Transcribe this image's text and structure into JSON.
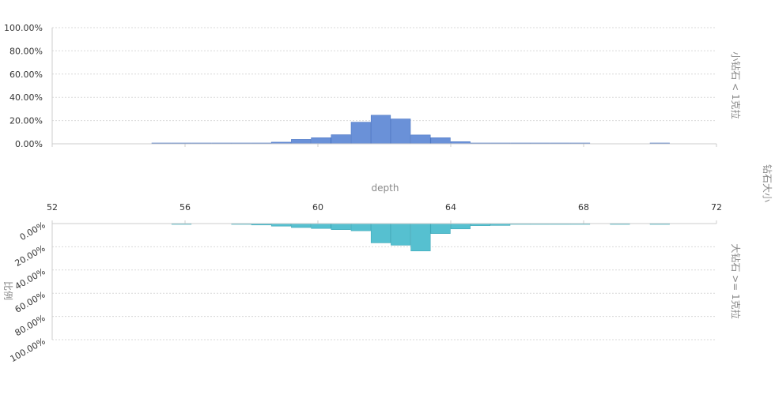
{
  "chart_data": {
    "type": "bar",
    "subtype": "mirrored-histogram",
    "x_axis": {
      "label": "depth",
      "range": [
        52,
        72
      ],
      "ticks": [
        52,
        56,
        60,
        64,
        68,
        72
      ],
      "tick_labels": [
        "52",
        "56",
        "60",
        "64",
        "68",
        "72"
      ],
      "bin_width": 0.6
    },
    "y_axis": {
      "label": "比例",
      "range": [
        0,
        100
      ],
      "unit": "%",
      "tick_labels": [
        "0.00%",
        "20.00%",
        "40.00%",
        "60.00%",
        "80.00%",
        "100.00%"
      ]
    },
    "facet_title": "钻石大小",
    "grid": true,
    "series": [
      {
        "name": "小钻石 < 1克拉",
        "facet": "top",
        "color": "#6a91d8",
        "x": [
          54.4,
          55.0,
          55.6,
          56.2,
          56.8,
          57.4,
          58.0,
          58.6,
          59.2,
          59.8,
          60.4,
          61.0,
          61.6,
          62.2,
          62.8,
          63.4,
          64.0,
          64.6,
          65.2,
          65.8,
          66.4,
          67.0,
          67.6,
          68.2,
          68.8,
          69.4,
          70.0,
          70.6
        ],
        "values": [
          0,
          0.2,
          0.2,
          0.2,
          0.4,
          0.4,
          0.6,
          1.4,
          3.8,
          5.2,
          7.8,
          18.6,
          24.6,
          21.4,
          7.6,
          5.2,
          1.8,
          0.4,
          0.6,
          0.4,
          0.2,
          0.2,
          0.2,
          0,
          0,
          0,
          0.4,
          0
        ]
      },
      {
        "name": "大钻石 >= 1克拉",
        "facet": "bottom",
        "color": "#56c0d0",
        "x": [
          54.4,
          55.0,
          55.6,
          56.2,
          56.8,
          57.4,
          58.0,
          58.6,
          59.2,
          59.8,
          60.4,
          61.0,
          61.6,
          62.2,
          62.8,
          63.4,
          64.0,
          64.6,
          65.2,
          65.8,
          66.4,
          67.0,
          67.6,
          68.2,
          68.8,
          69.4,
          70.0,
          70.6
        ],
        "values": [
          0,
          0,
          0.4,
          0,
          0,
          0.6,
          1.2,
          2.2,
          3.4,
          4.2,
          5.2,
          6.2,
          16.6,
          18.6,
          23.6,
          8.6,
          4.6,
          1.8,
          1.6,
          0.4,
          0.4,
          0.4,
          0.4,
          0,
          0.4,
          0,
          0.4,
          0
        ]
      }
    ]
  }
}
